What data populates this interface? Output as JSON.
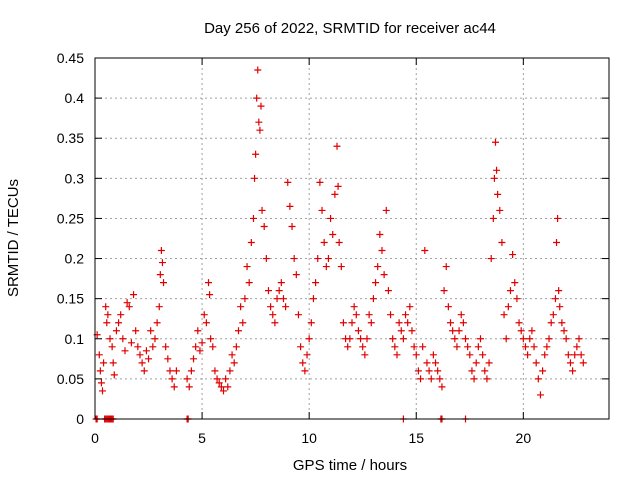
{
  "chart_data": {
    "type": "scatter",
    "title": "Day 256 of 2022, SRMTID for receiver ac44",
    "xlabel": "GPS time / hours",
    "ylabel": "SRMTID / TECUs",
    "xlim": [
      0,
      24
    ],
    "ylim": [
      0,
      0.45
    ],
    "xticks": [
      0,
      5,
      10,
      15,
      20
    ],
    "xtick_labels": [
      "0",
      "5",
      "10",
      "15",
      "20"
    ],
    "yticks": [
      0,
      0.05,
      0.1,
      0.15,
      0.2,
      0.25,
      0.3,
      0.35,
      0.4,
      0.45
    ],
    "ytick_labels": [
      "0",
      "0.05",
      "0.1",
      "0.15",
      "0.2",
      "0.25",
      "0.3",
      "0.35",
      "0.4",
      "0.45"
    ],
    "grid": true,
    "marker": "plus",
    "color": "#e00000",
    "series": [
      {
        "name": "SRMTID",
        "points": [
          [
            0.1,
            0.105
          ],
          [
            0.2,
            0.08
          ],
          [
            0.25,
            0.06
          ],
          [
            0.3,
            0.045
          ],
          [
            0.35,
            0.035
          ],
          [
            0.4,
            0.07
          ],
          [
            0.5,
            0.14
          ],
          [
            0.55,
            0.12
          ],
          [
            0.6,
            0.13
          ],
          [
            0.7,
            0.1
          ],
          [
            0.8,
            0.09
          ],
          [
            0.85,
            0.07
          ],
          [
            0.9,
            0.055
          ],
          [
            1.0,
            0.11
          ],
          [
            1.1,
            0.12
          ],
          [
            1.2,
            0.13
          ],
          [
            1.3,
            0.1
          ],
          [
            1.4,
            0.085
          ],
          [
            1.5,
            0.145
          ],
          [
            1.6,
            0.14
          ],
          [
            1.7,
            0.095
          ],
          [
            1.8,
            0.155
          ],
          [
            1.9,
            0.11
          ],
          [
            2.0,
            0.09
          ],
          [
            2.1,
            0.08
          ],
          [
            2.2,
            0.07
          ],
          [
            2.3,
            0.06
          ],
          [
            2.4,
            0.085
          ],
          [
            2.5,
            0.075
          ],
          [
            2.6,
            0.11
          ],
          [
            2.7,
            0.09
          ],
          [
            2.8,
            0.1
          ],
          [
            2.9,
            0.12
          ],
          [
            3.0,
            0.14
          ],
          [
            3.05,
            0.18
          ],
          [
            3.1,
            0.21
          ],
          [
            3.15,
            0.195
          ],
          [
            3.2,
            0.17
          ],
          [
            3.3,
            0.09
          ],
          [
            3.4,
            0.075
          ],
          [
            3.5,
            0.06
          ],
          [
            3.6,
            0.05
          ],
          [
            3.7,
            0.04
          ],
          [
            3.8,
            0.06
          ],
          [
            4.3,
            0.05
          ],
          [
            4.4,
            0.04
          ],
          [
            4.5,
            0.06
          ],
          [
            4.6,
            0.075
          ],
          [
            4.7,
            0.09
          ],
          [
            4.8,
            0.11
          ],
          [
            4.9,
            0.085
          ],
          [
            5.0,
            0.095
          ],
          [
            5.1,
            0.13
          ],
          [
            5.2,
            0.12
          ],
          [
            5.3,
            0.17
          ],
          [
            5.35,
            0.155
          ],
          [
            5.4,
            0.1
          ],
          [
            5.5,
            0.09
          ],
          [
            5.6,
            0.06
          ],
          [
            5.7,
            0.05
          ],
          [
            5.8,
            0.045
          ],
          [
            5.9,
            0.04
          ],
          [
            6.0,
            0.035
          ],
          [
            6.1,
            0.05
          ],
          [
            6.2,
            0.04
          ],
          [
            6.3,
            0.06
          ],
          [
            6.4,
            0.08
          ],
          [
            6.5,
            0.07
          ],
          [
            6.6,
            0.09
          ],
          [
            6.7,
            0.11
          ],
          [
            6.8,
            0.14
          ],
          [
            6.9,
            0.12
          ],
          [
            7.0,
            0.15
          ],
          [
            7.1,
            0.19
          ],
          [
            7.2,
            0.17
          ],
          [
            7.3,
            0.22
          ],
          [
            7.4,
            0.25
          ],
          [
            7.45,
            0.3
          ],
          [
            7.5,
            0.33
          ],
          [
            7.55,
            0.4
          ],
          [
            7.6,
            0.435
          ],
          [
            7.65,
            0.37
          ],
          [
            7.7,
            0.36
          ],
          [
            7.75,
            0.39
          ],
          [
            7.8,
            0.26
          ],
          [
            7.9,
            0.24
          ],
          [
            8.0,
            0.2
          ],
          [
            8.1,
            0.16
          ],
          [
            8.2,
            0.14
          ],
          [
            8.3,
            0.13
          ],
          [
            8.4,
            0.12
          ],
          [
            8.5,
            0.15
          ],
          [
            8.6,
            0.16
          ],
          [
            8.7,
            0.17
          ],
          [
            8.8,
            0.15
          ],
          [
            8.9,
            0.14
          ],
          [
            9.0,
            0.295
          ],
          [
            9.1,
            0.265
          ],
          [
            9.2,
            0.24
          ],
          [
            9.3,
            0.2
          ],
          [
            9.4,
            0.18
          ],
          [
            9.5,
            0.13
          ],
          [
            9.6,
            0.09
          ],
          [
            9.7,
            0.07
          ],
          [
            9.8,
            0.06
          ],
          [
            9.9,
            0.08
          ],
          [
            10.0,
            0.1
          ],
          [
            10.1,
            0.12
          ],
          [
            10.2,
            0.15
          ],
          [
            10.3,
            0.17
          ],
          [
            10.4,
            0.2
          ],
          [
            10.5,
            0.295
          ],
          [
            10.6,
            0.26
          ],
          [
            10.7,
            0.22
          ],
          [
            10.8,
            0.19
          ],
          [
            10.9,
            0.2
          ],
          [
            11.0,
            0.25
          ],
          [
            11.1,
            0.23
          ],
          [
            11.2,
            0.28
          ],
          [
            11.3,
            0.34
          ],
          [
            11.35,
            0.29
          ],
          [
            11.4,
            0.22
          ],
          [
            11.5,
            0.19
          ],
          [
            11.6,
            0.12
          ],
          [
            11.7,
            0.1
          ],
          [
            11.8,
            0.09
          ],
          [
            11.9,
            0.1
          ],
          [
            12.0,
            0.12
          ],
          [
            12.1,
            0.14
          ],
          [
            12.2,
            0.13
          ],
          [
            12.3,
            0.11
          ],
          [
            12.4,
            0.1
          ],
          [
            12.5,
            0.09
          ],
          [
            12.6,
            0.08
          ],
          [
            12.7,
            0.1
          ],
          [
            12.8,
            0.13
          ],
          [
            12.9,
            0.12
          ],
          [
            13.0,
            0.15
          ],
          [
            13.1,
            0.17
          ],
          [
            13.2,
            0.19
          ],
          [
            13.3,
            0.23
          ],
          [
            13.4,
            0.21
          ],
          [
            13.5,
            0.18
          ],
          [
            13.6,
            0.26
          ],
          [
            13.7,
            0.16
          ],
          [
            13.8,
            0.13
          ],
          [
            13.9,
            0.1
          ],
          [
            14.0,
            0.09
          ],
          [
            14.1,
            0.08
          ],
          [
            14.2,
            0.12
          ],
          [
            14.3,
            0.11
          ],
          [
            14.4,
            0.1
          ],
          [
            14.5,
            0.13
          ],
          [
            14.6,
            0.12
          ],
          [
            14.7,
            0.14
          ],
          [
            14.8,
            0.11
          ],
          [
            14.9,
            0.09
          ],
          [
            15.0,
            0.08
          ],
          [
            15.1,
            0.06
          ],
          [
            15.2,
            0.05
          ],
          [
            15.3,
            0.09
          ],
          [
            15.4,
            0.21
          ],
          [
            15.5,
            0.07
          ],
          [
            15.6,
            0.06
          ],
          [
            15.7,
            0.05
          ],
          [
            15.8,
            0.08
          ],
          [
            15.9,
            0.07
          ],
          [
            16.0,
            0.06
          ],
          [
            16.1,
            0.05
          ],
          [
            16.2,
            0.04
          ],
          [
            16.3,
            0.16
          ],
          [
            16.4,
            0.19
          ],
          [
            16.5,
            0.14
          ],
          [
            16.6,
            0.12
          ],
          [
            16.7,
            0.11
          ],
          [
            16.8,
            0.1
          ],
          [
            16.9,
            0.09
          ],
          [
            17.0,
            0.11
          ],
          [
            17.1,
            0.13
          ],
          [
            17.2,
            0.12
          ],
          [
            17.3,
            0.1
          ],
          [
            17.4,
            0.09
          ],
          [
            17.5,
            0.08
          ],
          [
            17.6,
            0.06
          ],
          [
            17.7,
            0.05
          ],
          [
            17.8,
            0.07
          ],
          [
            17.9,
            0.09
          ],
          [
            18.0,
            0.1
          ],
          [
            18.1,
            0.08
          ],
          [
            18.2,
            0.06
          ],
          [
            18.3,
            0.05
          ],
          [
            18.4,
            0.07
          ],
          [
            18.5,
            0.2
          ],
          [
            18.6,
            0.25
          ],
          [
            18.65,
            0.3
          ],
          [
            18.7,
            0.345
          ],
          [
            18.75,
            0.31
          ],
          [
            18.8,
            0.28
          ],
          [
            18.9,
            0.26
          ],
          [
            19.0,
            0.22
          ],
          [
            19.1,
            0.13
          ],
          [
            19.2,
            0.1
          ],
          [
            19.3,
            0.14
          ],
          [
            19.4,
            0.16
          ],
          [
            19.5,
            0.205
          ],
          [
            19.6,
            0.17
          ],
          [
            19.7,
            0.15
          ],
          [
            19.8,
            0.12
          ],
          [
            19.9,
            0.11
          ],
          [
            20.0,
            0.1
          ],
          [
            20.1,
            0.09
          ],
          [
            20.2,
            0.08
          ],
          [
            20.3,
            0.1
          ],
          [
            20.4,
            0.11
          ],
          [
            20.5,
            0.09
          ],
          [
            20.6,
            0.07
          ],
          [
            20.7,
            0.05
          ],
          [
            20.8,
            0.03
          ],
          [
            20.9,
            0.06
          ],
          [
            21.0,
            0.08
          ],
          [
            21.1,
            0.09
          ],
          [
            21.2,
            0.1
          ],
          [
            21.3,
            0.12
          ],
          [
            21.4,
            0.13
          ],
          [
            21.5,
            0.15
          ],
          [
            21.55,
            0.22
          ],
          [
            21.6,
            0.25
          ],
          [
            21.65,
            0.16
          ],
          [
            21.7,
            0.14
          ],
          [
            21.8,
            0.12
          ],
          [
            21.9,
            0.11
          ],
          [
            22.0,
            0.1
          ],
          [
            22.1,
            0.08
          ],
          [
            22.2,
            0.07
          ],
          [
            22.3,
            0.06
          ],
          [
            22.4,
            0.08
          ],
          [
            22.5,
            0.09
          ],
          [
            22.6,
            0.1
          ],
          [
            22.7,
            0.08
          ],
          [
            22.8,
            0.07
          ],
          [
            0.05,
            0.0
          ],
          [
            0.1,
            0.0
          ],
          [
            0.45,
            0.0
          ],
          [
            0.5,
            0.0
          ],
          [
            0.55,
            0.0
          ],
          [
            0.6,
            0.0
          ],
          [
            0.65,
            0.0
          ],
          [
            0.7,
            0.0
          ],
          [
            0.75,
            0.0
          ],
          [
            0.8,
            0.0
          ],
          [
            0.85,
            0.0
          ],
          [
            4.3,
            0.0
          ],
          [
            4.35,
            0.0
          ],
          [
            14.4,
            0.0
          ],
          [
            16.15,
            0.0
          ],
          [
            16.2,
            0.0
          ],
          [
            17.3,
            0.0
          ]
        ]
      }
    ]
  }
}
